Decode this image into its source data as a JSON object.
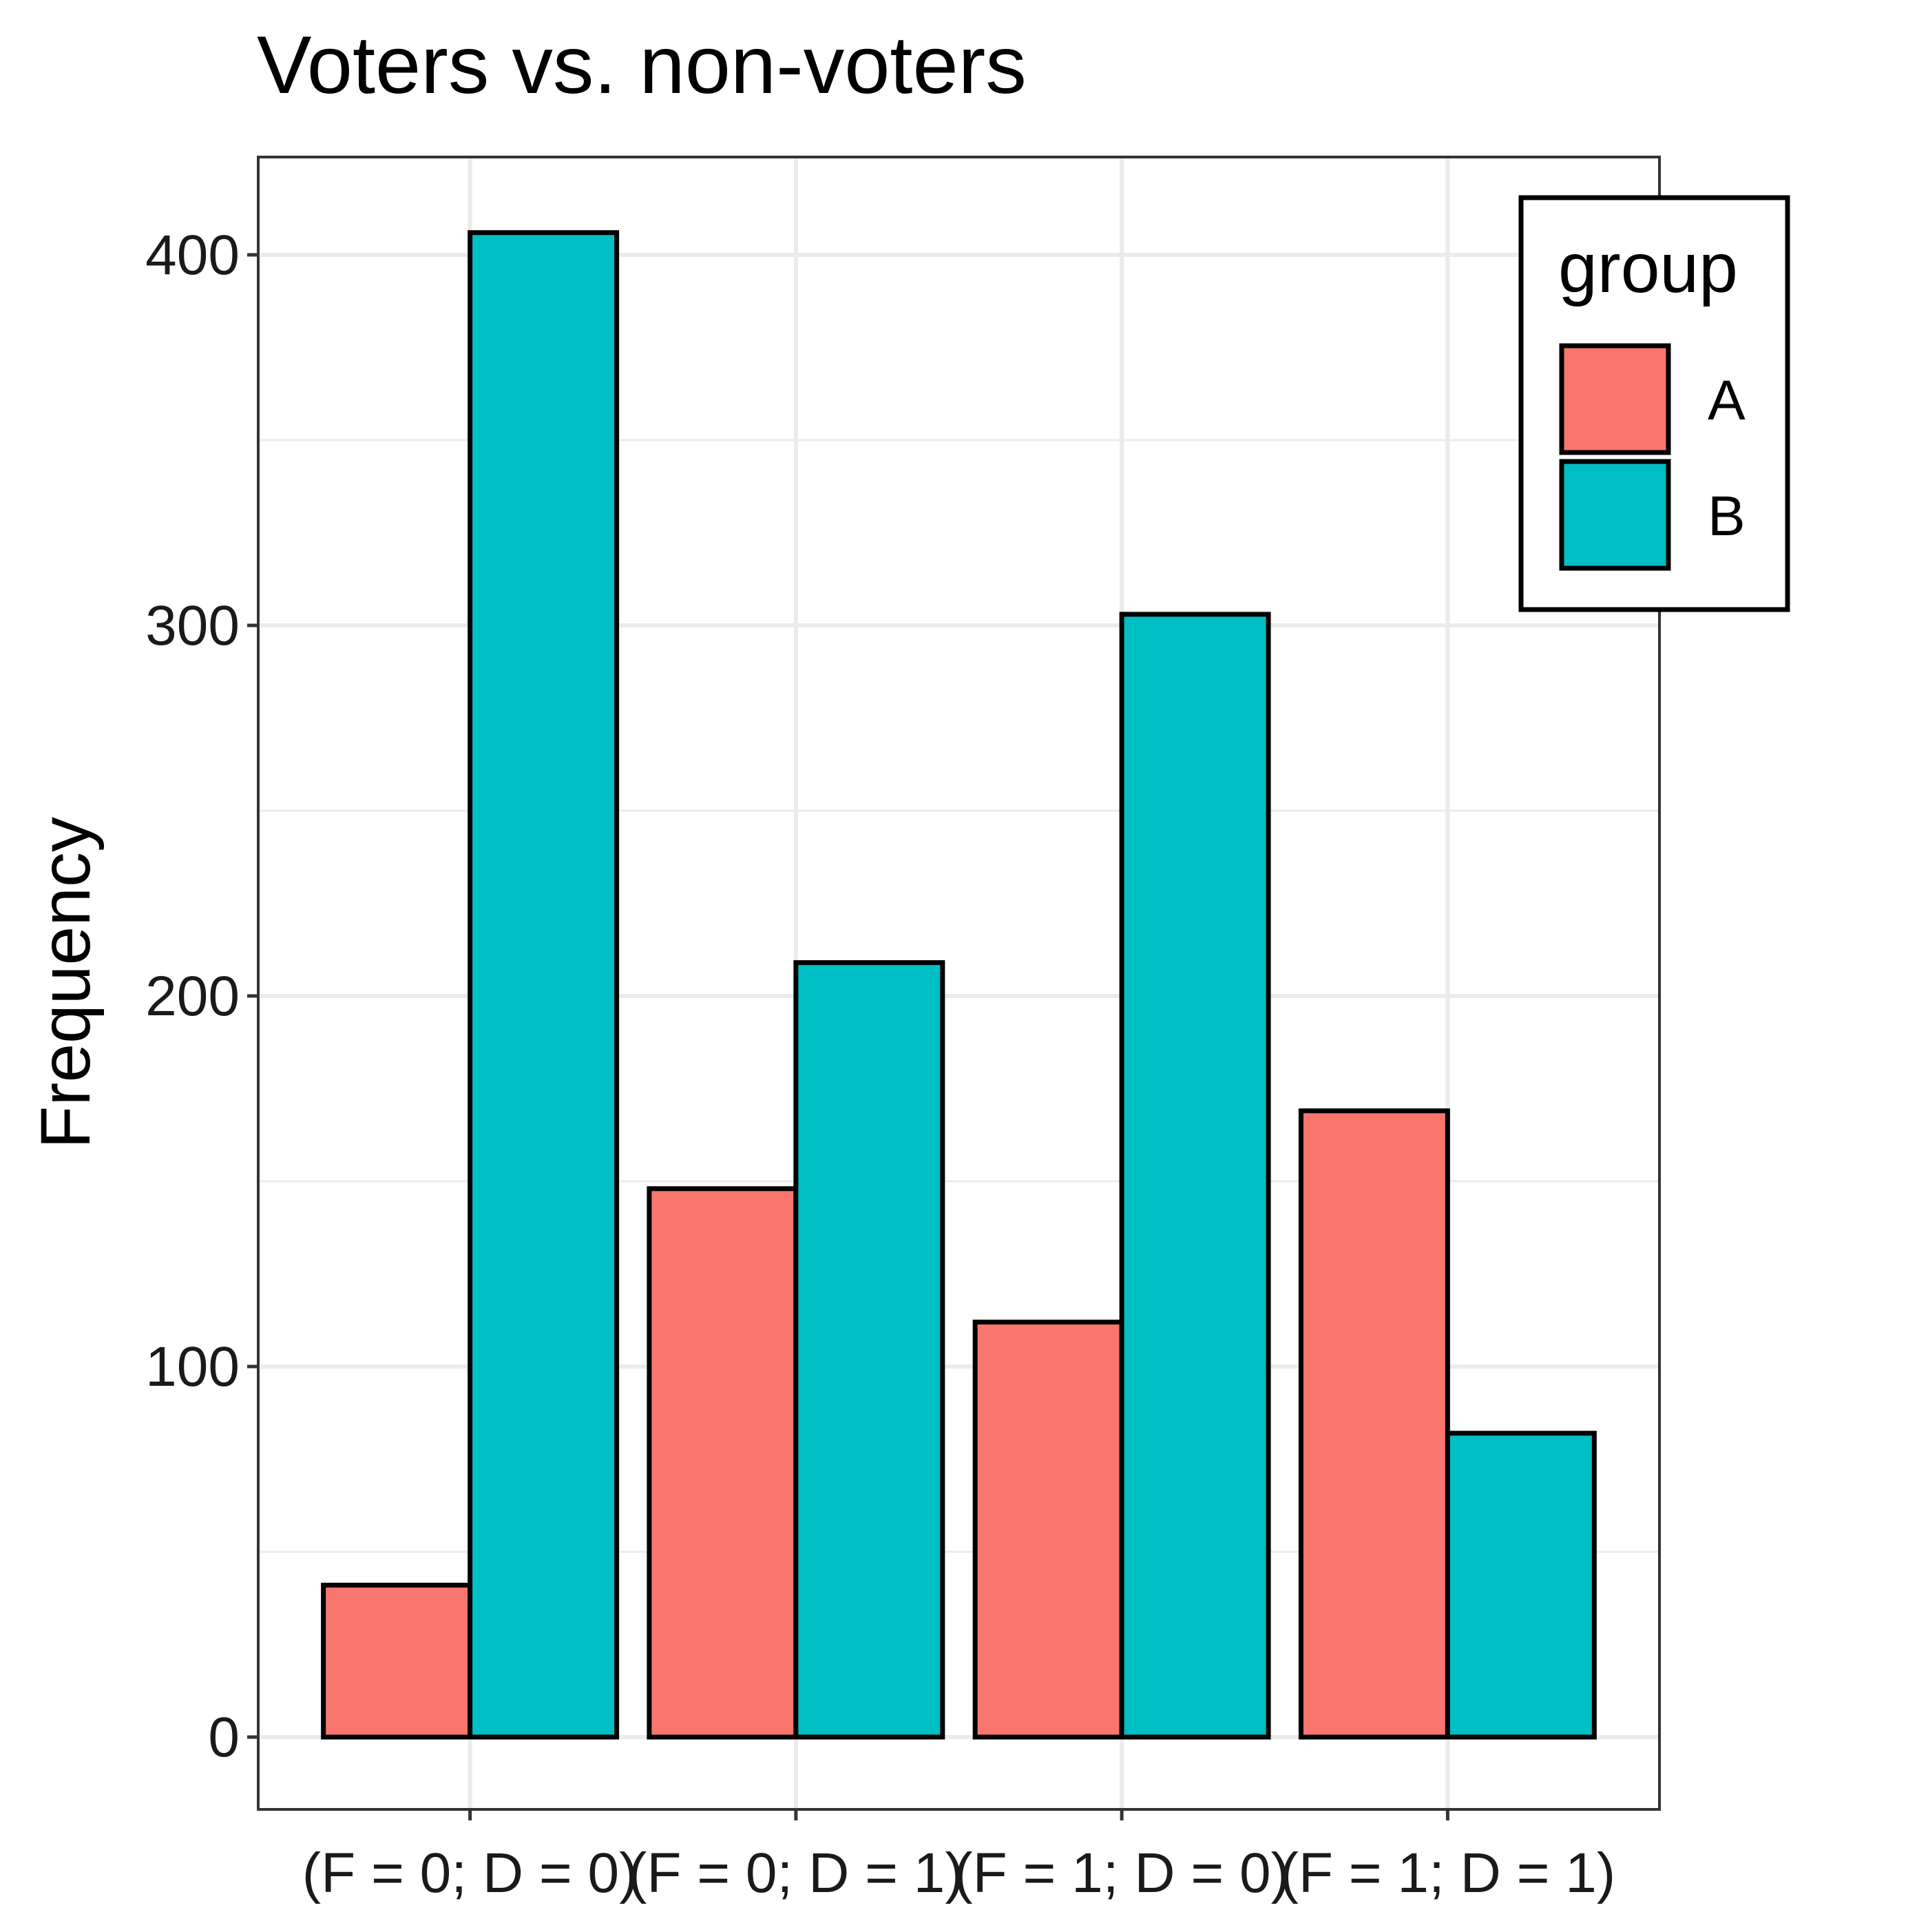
{
  "chart_data": {
    "type": "bar",
    "title": "Voters vs. non-voters",
    "xlabel": "",
    "ylabel": "Frequency",
    "categories": [
      "(F = 0; D = 0)",
      "(F = 0; D = 1)",
      "(F = 1; D = 0)",
      "(F = 1; D = 1)"
    ],
    "series": [
      {
        "name": "A",
        "color": "#F8766D",
        "values": [
          41,
          148,
          112,
          169
        ]
      },
      {
        "name": "B",
        "color": "#00BFC4",
        "values": [
          406,
          209,
          303,
          82
        ]
      }
    ],
    "ylim": [
      -20,
      426
    ],
    "yticks": [
      0,
      100,
      200,
      300,
      400
    ],
    "grid": true,
    "legend": {
      "title": "group",
      "position": "top-right"
    }
  }
}
